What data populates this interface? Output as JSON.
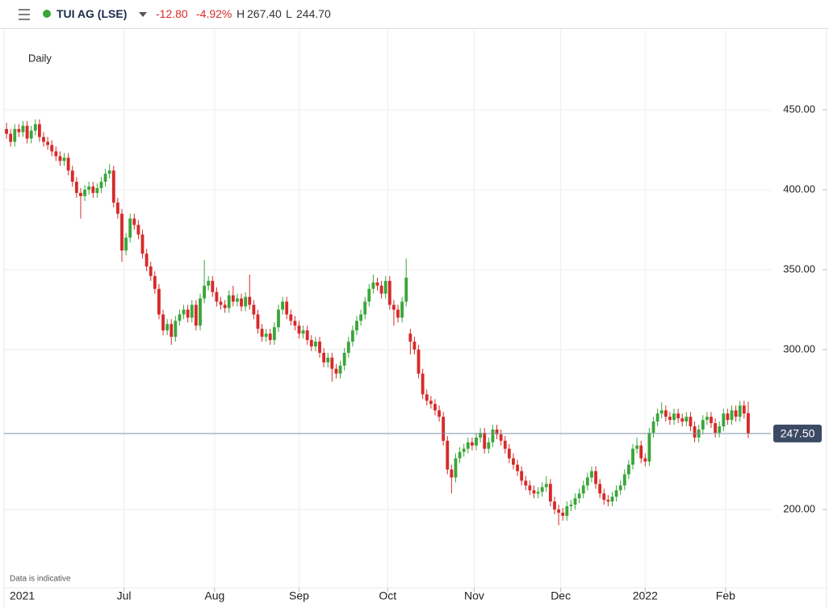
{
  "header": {
    "symbol": "TUI AG (LSE)",
    "change": "-12.80",
    "change_pct": "-4.92%",
    "high_label": "H",
    "high": "267.40",
    "low_label": "L",
    "low": "244.70"
  },
  "chart_data": {
    "type": "candlestick",
    "interval": "Daily",
    "note": "Data is indicative",
    "up_color": "#3aa63a",
    "down_color": "#d72a2a",
    "grid": true,
    "ylim": [
      151,
      500
    ],
    "yticks": [
      {
        "value": 200,
        "label": "200.00"
      },
      {
        "value": 300,
        "label": "300.00"
      },
      {
        "value": 350,
        "label": "350.00"
      },
      {
        "value": 400,
        "label": "400.00"
      },
      {
        "value": 450,
        "label": "450.00"
      }
    ],
    "xlim": [
      -0.6,
      185.5
    ],
    "xticks": [
      {
        "value": 0,
        "label": "2021"
      },
      {
        "value": 28.5,
        "label": "Jul"
      },
      {
        "value": 50.5,
        "label": "Aug"
      },
      {
        "value": 71,
        "label": "Sep"
      },
      {
        "value": 92.5,
        "label": "Oct"
      },
      {
        "value": 113.5,
        "label": "Nov"
      },
      {
        "value": 134.5,
        "label": "Dec"
      },
      {
        "value": 155,
        "label": "2022"
      },
      {
        "value": 174.5,
        "label": "Feb"
      }
    ],
    "last_price": {
      "value": 247.5,
      "label": "247.50"
    },
    "ohlc": [
      [
        438,
        442,
        432,
        435
      ],
      [
        435,
        438,
        427,
        430
      ],
      [
        430,
        441,
        427,
        438
      ],
      [
        438,
        441,
        433,
        436
      ],
      [
        436,
        443,
        433,
        440
      ],
      [
        440,
        443,
        429,
        432
      ],
      [
        432,
        440,
        429,
        437
      ],
      [
        437,
        444,
        434,
        441
      ],
      [
        441,
        444,
        430,
        433
      ],
      [
        433,
        436,
        427,
        430
      ],
      [
        430,
        433,
        425,
        428
      ],
      [
        428,
        431,
        421,
        424
      ],
      [
        424,
        427,
        418,
        421
      ],
      [
        421,
        424,
        415,
        418
      ],
      [
        418,
        423,
        415,
        420
      ],
      [
        420,
        423,
        409,
        412
      ],
      [
        412,
        415,
        402,
        405
      ],
      [
        405,
        408,
        395,
        398
      ],
      [
        398,
        401,
        382,
        396
      ],
      [
        396,
        403,
        393,
        400
      ],
      [
        400,
        405,
        397,
        402
      ],
      [
        402,
        405,
        395,
        398
      ],
      [
        398,
        404,
        395,
        401
      ],
      [
        401,
        408,
        398,
        405
      ],
      [
        405,
        413,
        402,
        410
      ],
      [
        410,
        416,
        407,
        412
      ],
      [
        412,
        415,
        389,
        392
      ],
      [
        392,
        395,
        382,
        385
      ],
      [
        385,
        388,
        355,
        362
      ],
      [
        362,
        373,
        359,
        370
      ],
      [
        370,
        385,
        367,
        382
      ],
      [
        382,
        385,
        375,
        378
      ],
      [
        378,
        381,
        369,
        372
      ],
      [
        372,
        375,
        357,
        360
      ],
      [
        360,
        363,
        349,
        352
      ],
      [
        352,
        355,
        343,
        346
      ],
      [
        346,
        349,
        335,
        338
      ],
      [
        338,
        341,
        319,
        322
      ],
      [
        322,
        325,
        309,
        312
      ],
      [
        312,
        319,
        309,
        316
      ],
      [
        316,
        319,
        303,
        308
      ],
      [
        308,
        321,
        305,
        318
      ],
      [
        318,
        325,
        315,
        322
      ],
      [
        322,
        328,
        319,
        325
      ],
      [
        325,
        328,
        317,
        320
      ],
      [
        320,
        331,
        317,
        328
      ],
      [
        328,
        331,
        312,
        315
      ],
      [
        315,
        335,
        312,
        332
      ],
      [
        332,
        356,
        329,
        340
      ],
      [
        340,
        346,
        337,
        343
      ],
      [
        343,
        346,
        333,
        336
      ],
      [
        336,
        339,
        327,
        330
      ],
      [
        330,
        333,
        325,
        328
      ],
      [
        328,
        331,
        323,
        326
      ],
      [
        326,
        337,
        323,
        334
      ],
      [
        334,
        340,
        327,
        330
      ],
      [
        330,
        335,
        327,
        332
      ],
      [
        332,
        335,
        324,
        327
      ],
      [
        327,
        336,
        324,
        333
      ],
      [
        333,
        347,
        325,
        328
      ],
      [
        328,
        331,
        319,
        322
      ],
      [
        322,
        325,
        310,
        313
      ],
      [
        313,
        316,
        305,
        308
      ],
      [
        308,
        313,
        305,
        310
      ],
      [
        310,
        313,
        303,
        306
      ],
      [
        306,
        317,
        303,
        314
      ],
      [
        314,
        328,
        311,
        325
      ],
      [
        325,
        333,
        322,
        330
      ],
      [
        330,
        333,
        319,
        322
      ],
      [
        322,
        325,
        315,
        318
      ],
      [
        318,
        321,
        312,
        315
      ],
      [
        315,
        318,
        307,
        310
      ],
      [
        310,
        315,
        307,
        312
      ],
      [
        312,
        315,
        303,
        306
      ],
      [
        306,
        309,
        299,
        302
      ],
      [
        302,
        308,
        299,
        305
      ],
      [
        305,
        308,
        295,
        298
      ],
      [
        298,
        301,
        289,
        292
      ],
      [
        292,
        298,
        289,
        295
      ],
      [
        295,
        298,
        280,
        288
      ],
      [
        288,
        291,
        282,
        285
      ],
      [
        285,
        293,
        282,
        290
      ],
      [
        290,
        301,
        287,
        298
      ],
      [
        298,
        308,
        295,
        305
      ],
      [
        305,
        315,
        302,
        312
      ],
      [
        312,
        321,
        309,
        318
      ],
      [
        318,
        325,
        315,
        322
      ],
      [
        322,
        333,
        319,
        330
      ],
      [
        330,
        341,
        327,
        338
      ],
      [
        338,
        347,
        335,
        342
      ],
      [
        342,
        345,
        337,
        340
      ],
      [
        340,
        343,
        332,
        335
      ],
      [
        335,
        346,
        332,
        343
      ],
      [
        343,
        346,
        325,
        328
      ],
      [
        328,
        331,
        315,
        325
      ],
      [
        325,
        328,
        317,
        320
      ],
      [
        320,
        333,
        317,
        330
      ],
      [
        330,
        357,
        327,
        345
      ],
      [
        310,
        313,
        297,
        305
      ],
      [
        305,
        308,
        297,
        300
      ],
      [
        300,
        303,
        282,
        285
      ],
      [
        285,
        288,
        269,
        272
      ],
      [
        272,
        275,
        265,
        268
      ],
      [
        268,
        271,
        263,
        266
      ],
      [
        266,
        269,
        259,
        262
      ],
      [
        262,
        265,
        255,
        258
      ],
      [
        258,
        261,
        240,
        243
      ],
      [
        243,
        246,
        222,
        225
      ],
      [
        225,
        228,
        210,
        220
      ],
      [
        220,
        235,
        217,
        232
      ],
      [
        232,
        239,
        229,
        236
      ],
      [
        236,
        241,
        233,
        238
      ],
      [
        238,
        245,
        235,
        242
      ],
      [
        242,
        245,
        237,
        240
      ],
      [
        240,
        248,
        237,
        245
      ],
      [
        245,
        251,
        242,
        248
      ],
      [
        248,
        251,
        235,
        238
      ],
      [
        238,
        245,
        235,
        242
      ],
      [
        242,
        253,
        239,
        250
      ],
      [
        250,
        253,
        244,
        247
      ],
      [
        247,
        250,
        240,
        243
      ],
      [
        243,
        246,
        235,
        238
      ],
      [
        238,
        241,
        229,
        232
      ],
      [
        232,
        235,
        225,
        228
      ],
      [
        228,
        231,
        221,
        224
      ],
      [
        224,
        227,
        215,
        218
      ],
      [
        218,
        221,
        212,
        215
      ],
      [
        215,
        218,
        209,
        212
      ],
      [
        212,
        215,
        207,
        210
      ],
      [
        210,
        214,
        207,
        211
      ],
      [
        211,
        217,
        208,
        214
      ],
      [
        214,
        221,
        211,
        216
      ],
      [
        216,
        219,
        202,
        205
      ],
      [
        205,
        208,
        197,
        200
      ],
      [
        200,
        203,
        190,
        198
      ],
      [
        198,
        201,
        193,
        196
      ],
      [
        196,
        205,
        193,
        202
      ],
      [
        202,
        206,
        199,
        203
      ],
      [
        203,
        210,
        200,
        207
      ],
      [
        207,
        213,
        204,
        210
      ],
      [
        210,
        218,
        207,
        215
      ],
      [
        215,
        223,
        212,
        220
      ],
      [
        220,
        227,
        217,
        224
      ],
      [
        224,
        227,
        213,
        216
      ],
      [
        216,
        219,
        207,
        210
      ],
      [
        210,
        213,
        203,
        206
      ],
      [
        206,
        209,
        202,
        205
      ],
      [
        205,
        211,
        202,
        208
      ],
      [
        208,
        215,
        205,
        212
      ],
      [
        212,
        218,
        209,
        215
      ],
      [
        215,
        225,
        212,
        222
      ],
      [
        222,
        231,
        219,
        228
      ],
      [
        228,
        241,
        225,
        238
      ],
      [
        238,
        245,
        235,
        240
      ],
      [
        240,
        243,
        229,
        232
      ],
      [
        232,
        235,
        227,
        230
      ],
      [
        230,
        251,
        227,
        248
      ],
      [
        248,
        258,
        245,
        255
      ],
      [
        255,
        263,
        252,
        260
      ],
      [
        260,
        267,
        257,
        262
      ],
      [
        262,
        265,
        255,
        258
      ],
      [
        258,
        261,
        253,
        256
      ],
      [
        256,
        263,
        253,
        260
      ],
      [
        260,
        263,
        254,
        257
      ],
      [
        257,
        260,
        252,
        255
      ],
      [
        255,
        261,
        252,
        258
      ],
      [
        258,
        261,
        249,
        252
      ],
      [
        252,
        255,
        242,
        245
      ],
      [
        245,
        253,
        242,
        250
      ],
      [
        250,
        259,
        247,
        256
      ],
      [
        256,
        261,
        253,
        258
      ],
      [
        258,
        261,
        251,
        254
      ],
      [
        254,
        257,
        245,
        248
      ],
      [
        248,
        255,
        245,
        252
      ],
      [
        252,
        263,
        249,
        260
      ],
      [
        260,
        263,
        253,
        256
      ],
      [
        256,
        265,
        253,
        262
      ],
      [
        262,
        265,
        255,
        258
      ],
      [
        258,
        268,
        255,
        265
      ],
      [
        265,
        268,
        257,
        260
      ],
      [
        260.3,
        267.4,
        244.7,
        247.5
      ]
    ]
  }
}
